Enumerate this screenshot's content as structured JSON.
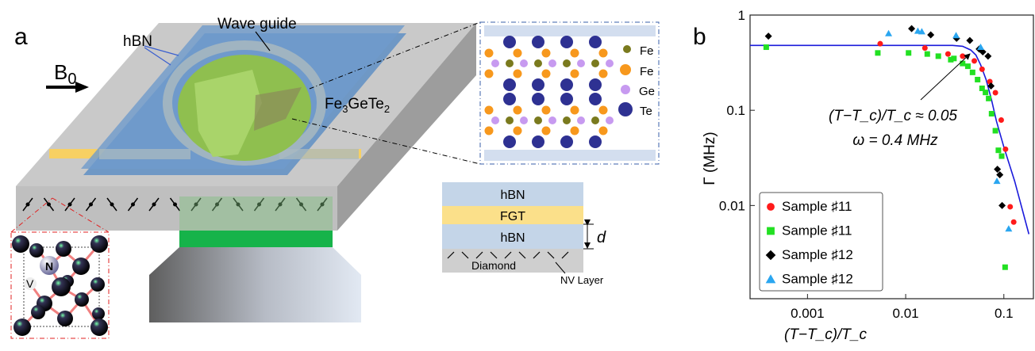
{
  "panel_a": {
    "label": "a",
    "hbn_label": "hBN",
    "waveguide_label": "Wave guide",
    "field_label": "B",
    "field_sub": "0",
    "flake_label_parts": [
      "Fe",
      "3",
      "GeTe",
      "2"
    ],
    "crystal_legend": [
      {
        "label": "Fe",
        "color": "#7a7a1e"
      },
      {
        "label": "Fe",
        "color": "#f7981d"
      },
      {
        "label": "Ge",
        "color": "#c79af0"
      },
      {
        "label": "Te",
        "color": "#2e3192"
      }
    ],
    "stack_layers": [
      "hBN",
      "FGT",
      "hBN",
      "Diamond"
    ],
    "distance_label": "d",
    "nv_layer_label": "NV Layer",
    "nv_labels": {
      "nitrogen": "N",
      "vacancy": "V"
    }
  },
  "panel_b": {
    "label": "b",
    "annotation_line1": "(T−T_c)/T_c ≈ 0.05",
    "annotation_line2": "ω = 0.4 MHz"
  },
  "chart_data": {
    "type": "scatter",
    "xlabel": "(T−T_c)/T_c",
    "ylabel": "Γ (MHz)",
    "xscale": "log",
    "yscale": "log",
    "xlim": [
      0.00026,
      0.2
    ],
    "ylim": [
      0.00105,
      1
    ],
    "xticks": [
      {
        "value": 0.001,
        "label": "0.001"
      },
      {
        "value": 0.01,
        "label": "0.01"
      },
      {
        "value": 0.1,
        "label": "0.1"
      }
    ],
    "yticks": [
      {
        "value": 0.01,
        "label": "0.01"
      },
      {
        "value": 0.1,
        "label": "0.1"
      },
      {
        "value": 1,
        "label": "1"
      }
    ],
    "grid": false,
    "legend_position": "bottom-left",
    "series": [
      {
        "name": "Sample ♯11",
        "marker": "circle",
        "color": "#ff1a1a",
        "x": [
          0.0055,
          0.0157,
          0.027,
          0.038,
          0.05,
          0.06,
          0.072,
          0.082,
          0.094,
          0.104,
          0.116,
          0.126
        ],
        "y": [
          0.5,
          0.45,
          0.39,
          0.37,
          0.33,
          0.27,
          0.2,
          0.153,
          0.079,
          0.039,
          0.0097,
          0.0067
        ]
      },
      {
        "name": "Sample ♯11",
        "marker": "square",
        "color": "#22e022",
        "x": [
          0.00038,
          0.0052,
          0.0107,
          0.0166,
          0.0215,
          0.0288,
          0.031,
          0.038,
          0.043,
          0.048,
          0.054,
          0.06,
          0.065,
          0.07,
          0.075,
          0.082,
          0.088,
          0.095,
          0.103
        ],
        "y": [
          0.46,
          0.4,
          0.4,
          0.39,
          0.37,
          0.34,
          0.35,
          0.31,
          0.29,
          0.25,
          0.21,
          0.17,
          0.154,
          0.133,
          0.092,
          0.061,
          0.038,
          0.033,
          0.00225
        ]
      },
      {
        "name": "Sample ♯12",
        "marker": "diamond",
        "color": "#000000",
        "x": [
          0.0004,
          0.0115,
          0.018,
          0.033,
          0.045,
          0.056,
          0.061,
          0.069,
          0.074,
          0.086,
          0.091,
          0.096
        ],
        "y": [
          0.6,
          0.72,
          0.62,
          0.57,
          0.54,
          0.44,
          0.41,
          0.37,
          0.18,
          0.024,
          0.021,
          0.01
        ]
      },
      {
        "name": "Sample ♯12",
        "marker": "triangle",
        "color": "#2aa6f0",
        "x": [
          0.0067,
          0.0133,
          0.0146,
          0.0326,
          0.058,
          0.085,
          0.112
        ],
        "y": [
          0.64,
          0.68,
          0.67,
          0.61,
          0.46,
          0.018,
          0.0057
        ]
      }
    ],
    "fit": {
      "color": "#1a1adb",
      "x": [
        0.00026,
        0.03,
        0.038,
        0.046,
        0.052,
        0.058,
        0.066,
        0.075,
        0.084,
        0.1,
        0.129,
        0.18
      ],
      "y": [
        0.48,
        0.48,
        0.47,
        0.43,
        0.38,
        0.3,
        0.21,
        0.128,
        0.077,
        0.041,
        0.018,
        0.005
      ]
    }
  }
}
